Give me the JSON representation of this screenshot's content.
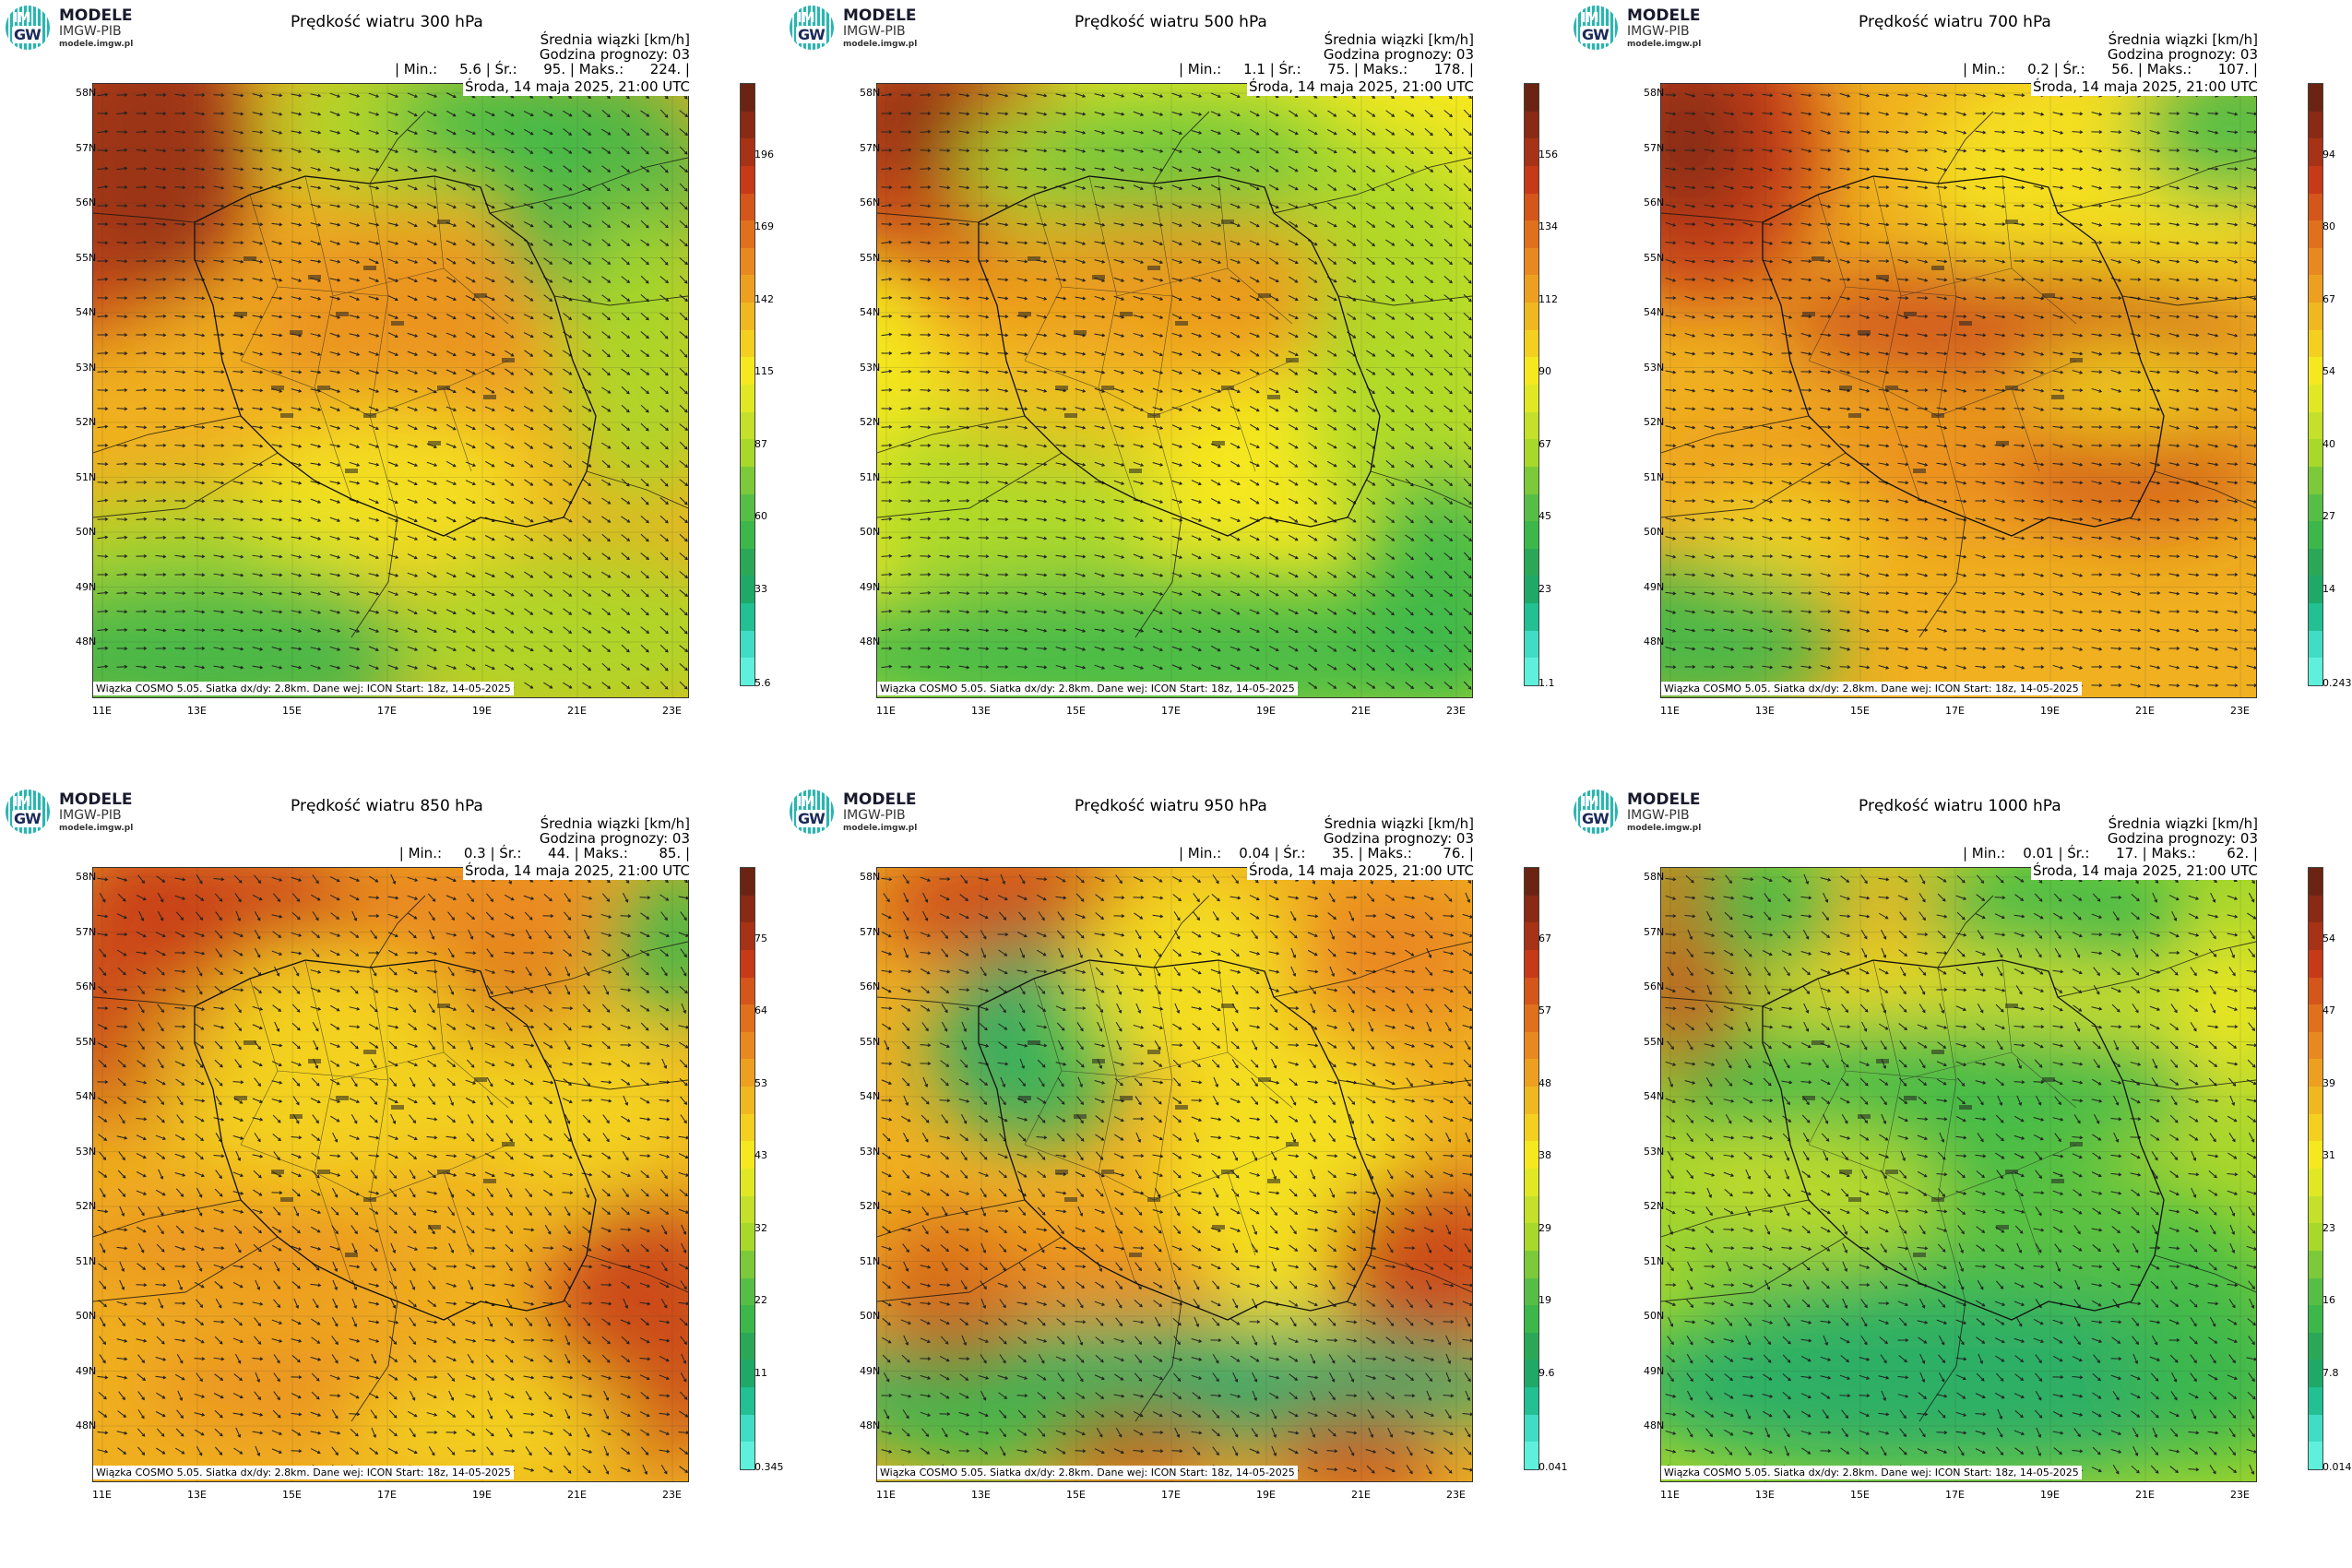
{
  "brand": {
    "line1": "MODELE",
    "line2": "IMGW-PIB",
    "line3": "modele.imgw.pl",
    "mark_top": "IM",
    "mark_bottom": "GW"
  },
  "common": {
    "unit_label": "Średnia wiązki [km/h]",
    "forecast_hour": "Godzina prognozy: 03",
    "date": "Środa, 14 maja 2025, 21:00 UTC",
    "footnote": "Wiązka COSMO 5.05. Siatka dx/dy: 2.8km. Dane wej: ICON Start: 18z, 14-05-2025",
    "lat_labels": [
      "58N",
      "57N",
      "56N",
      "55N",
      "54N",
      "53N",
      "52N",
      "51N",
      "50N",
      "49N",
      "48N"
    ],
    "lon_labels": [
      "11E",
      "13E",
      "15E",
      "17E",
      "19E",
      "21E",
      "23E"
    ]
  },
  "panels": [
    {
      "title": "Prędkość wiatru 300 hPa",
      "stats": "| Min.:     5.6 | Śr.:      95. | Maks.:      224. |",
      "cbar_ticks": [
        "196",
        "169",
        "142",
        "115",
        "87",
        "60",
        "33",
        "5.6"
      ]
    },
    {
      "title": "Prędkość wiatru 500 hPa",
      "stats": "| Min.:     1.1 | Śr.:      75. | Maks.:      178. |",
      "cbar_ticks": [
        "156",
        "134",
        "112",
        "90",
        "67",
        "45",
        "23",
        "1.1"
      ]
    },
    {
      "title": "Prędkość wiatru 700 hPa",
      "stats": "| Min.:     0.2 | Śr.:      56. | Maks.:      107. |",
      "cbar_ticks": [
        "94",
        "80",
        "67",
        "54",
        "40",
        "27",
        "14",
        "0.243"
      ]
    },
    {
      "title": "Prędkość wiatru 850 hPa",
      "stats": "| Min.:     0.3 | Śr.:      44. | Maks.:       85. |",
      "cbar_ticks": [
        "75",
        "64",
        "53",
        "43",
        "32",
        "22",
        "11",
        "0.345"
      ]
    },
    {
      "title": "Prędkość wiatru 950 hPa",
      "stats": "| Min.:    0.04 | Śr.:      35. | Maks.:       76. |",
      "cbar_ticks": [
        "67",
        "57",
        "48",
        "38",
        "29",
        "19",
        "9.6",
        "0.041"
      ]
    },
    {
      "title": "Prędkość wiatru 1000 hPa",
      "stats": "| Min.:    0.01 | Śr.:      17. | Maks.:       62. |",
      "cbar_ticks": [
        "54",
        "47",
        "39",
        "31",
        "23",
        "16",
        "7.8",
        "0.014"
      ]
    }
  ],
  "colors": {
    "dark_red": "#6b2414",
    "red": "#c63a17",
    "orange": "#e8801e",
    "amber": "#f0b020",
    "yellow": "#f5e820",
    "lime": "#a8d82a",
    "green": "#3cb84a",
    "teal": "#1aa870",
    "cyan": "#4de8d8"
  }
}
